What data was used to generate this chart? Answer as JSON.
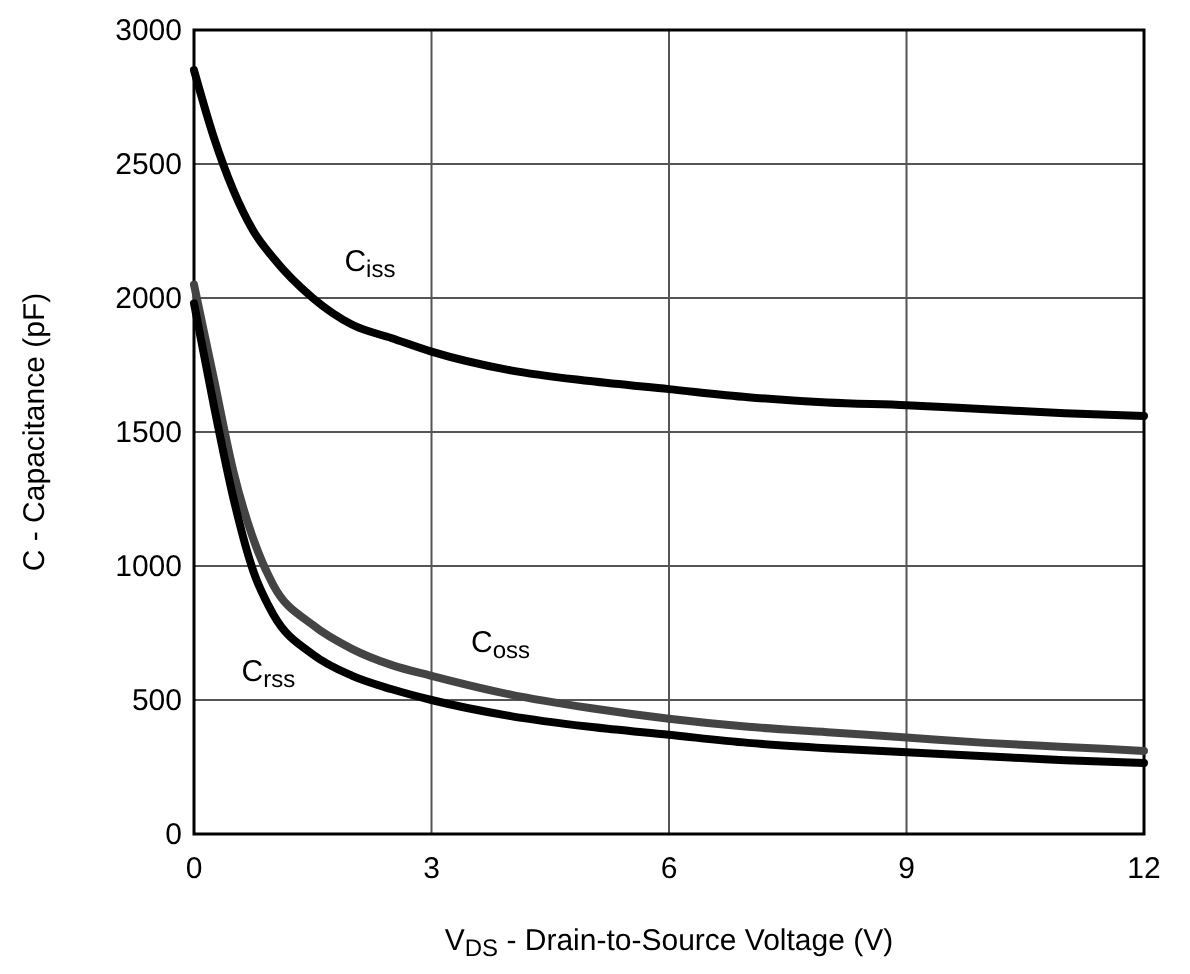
{
  "chart_data": {
    "type": "line",
    "xlabel": "V$_{DS}$ - Drain-to-Source Voltage (V)",
    "ylabel": "C - Capacitance (pF)",
    "xlim": [
      0,
      12
    ],
    "ylim": [
      0,
      3000
    ],
    "xticks": [
      0,
      3,
      6,
      9,
      12
    ],
    "yticks": [
      0,
      500,
      1000,
      1500,
      2000,
      2500,
      3000
    ],
    "grid": true,
    "line_style": "solid",
    "series": [
      {
        "name": "C$_{iss}$",
        "color": "#000000",
        "x": [
          0,
          0.25,
          0.5,
          0.75,
          1,
          1.5,
          2,
          2.5,
          3,
          4,
          5,
          6,
          7,
          8,
          9,
          10,
          11,
          12
        ],
        "values": [
          2850,
          2600,
          2400,
          2250,
          2150,
          2000,
          1900,
          1850,
          1800,
          1730,
          1690,
          1660,
          1630,
          1610,
          1600,
          1585,
          1570,
          1560
        ]
      },
      {
        "name": "C$_{oss}$",
        "color": "#444444",
        "x": [
          0,
          0.25,
          0.5,
          0.75,
          1,
          1.5,
          2,
          2.5,
          3,
          4,
          5,
          6,
          7,
          8,
          9,
          10,
          11,
          12
        ],
        "values": [
          2050,
          1700,
          1350,
          1100,
          930,
          780,
          690,
          630,
          590,
          520,
          470,
          430,
          400,
          380,
          360,
          340,
          325,
          310
        ]
      },
      {
        "name": "C$_{rss}$",
        "color": "#000000",
        "x": [
          0,
          0.25,
          0.5,
          0.75,
          1,
          1.5,
          2,
          2.5,
          3,
          4,
          5,
          6,
          7,
          8,
          9,
          10,
          11,
          12
        ],
        "values": [
          1980,
          1600,
          1250,
          980,
          820,
          670,
          590,
          540,
          500,
          440,
          400,
          370,
          340,
          320,
          305,
          290,
          275,
          265
        ]
      }
    ]
  }
}
